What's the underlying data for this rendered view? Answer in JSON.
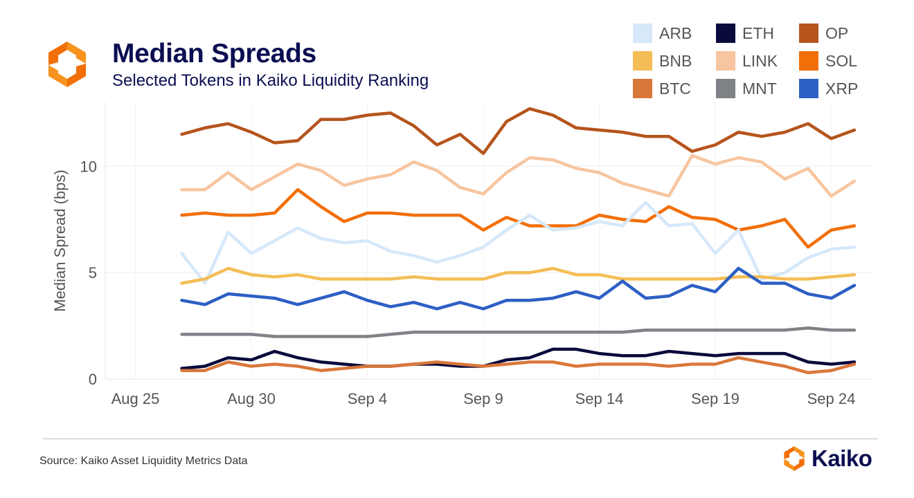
{
  "header": {
    "title": "Median Spreads",
    "subtitle": "Selected Tokens in Kaiko Liquidity Ranking"
  },
  "footer": {
    "source": "Source: Kaiko Asset Liquidity Metrics Data",
    "brand": "Kaiko"
  },
  "colors": {
    "brand_navy": "#0b0e52",
    "brand_orange": "#f7931e",
    "brand_orange_dark": "#e8590c"
  },
  "icons": {
    "logo": "kaiko-logo-icon"
  },
  "chart_data": {
    "type": "line",
    "title": "Median Spreads",
    "subtitle": "Selected Tokens in Kaiko Liquidity Ranking",
    "xlabel": "",
    "ylabel": "Median Spread (bps)",
    "ylim": [
      0,
      13
    ],
    "yticks": [
      0,
      5,
      10
    ],
    "xticks": [
      "Aug 25",
      "Aug 30",
      "Sep 4",
      "Sep 9",
      "Sep 14",
      "Sep 19",
      "Sep 24"
    ],
    "x": [
      "Aug 27",
      "Aug 28",
      "Aug 29",
      "Aug 30",
      "Aug 31",
      "Sep 1",
      "Sep 2",
      "Sep 3",
      "Sep 4",
      "Sep 5",
      "Sep 6",
      "Sep 7",
      "Sep 8",
      "Sep 9",
      "Sep 10",
      "Sep 11",
      "Sep 12",
      "Sep 13",
      "Sep 14",
      "Sep 15",
      "Sep 16",
      "Sep 17",
      "Sep 18",
      "Sep 19",
      "Sep 20",
      "Sep 21",
      "Sep 22",
      "Sep 23",
      "Sep 24",
      "Sep 25"
    ],
    "grid": true,
    "legend": "top-right",
    "series": [
      {
        "name": "OP",
        "color": "#b5541c",
        "values": [
          11.5,
          11.8,
          12.0,
          11.6,
          11.1,
          11.2,
          12.2,
          12.2,
          12.4,
          12.5,
          11.9,
          11.0,
          11.5,
          10.6,
          12.1,
          12.7,
          12.4,
          11.8,
          11.7,
          11.6,
          11.4,
          11.4,
          10.7,
          11.0,
          11.6,
          11.4,
          11.6,
          12.0,
          11.3,
          11.7
        ]
      },
      {
        "name": "LINK",
        "color": "#f7c59f",
        "values": [
          8.9,
          8.9,
          9.7,
          8.9,
          9.5,
          10.1,
          9.8,
          9.1,
          9.4,
          9.6,
          10.2,
          9.8,
          9.0,
          8.7,
          9.7,
          10.4,
          10.3,
          9.9,
          9.7,
          9.2,
          8.9,
          8.6,
          10.5,
          10.1,
          10.4,
          10.2,
          9.4,
          9.9,
          8.6,
          9.3
        ]
      },
      {
        "name": "SOL",
        "color": "#f26f08",
        "values": [
          7.7,
          7.8,
          7.7,
          7.7,
          7.8,
          8.9,
          8.1,
          7.4,
          7.8,
          7.8,
          7.7,
          7.7,
          7.7,
          7.0,
          7.6,
          7.2,
          7.2,
          7.2,
          7.7,
          7.5,
          7.4,
          8.1,
          7.6,
          7.5,
          7.0,
          7.2,
          7.5,
          6.2,
          7.0,
          7.2
        ]
      },
      {
        "name": "ARB",
        "color": "#d6e8fa",
        "values": [
          5.9,
          4.5,
          6.9,
          5.9,
          6.5,
          7.1,
          6.6,
          6.4,
          6.5,
          6.0,
          5.8,
          5.5,
          5.8,
          6.2,
          7.0,
          7.7,
          7.0,
          7.1,
          7.4,
          7.2,
          8.3,
          7.2,
          7.3,
          5.9,
          7.0,
          4.7,
          5.0,
          5.7,
          6.1,
          6.2
        ]
      },
      {
        "name": "BNB",
        "color": "#f4bd55",
        "values": [
          4.5,
          4.7,
          5.2,
          4.9,
          4.8,
          4.9,
          4.7,
          4.7,
          4.7,
          4.7,
          4.8,
          4.7,
          4.7,
          4.7,
          5.0,
          5.0,
          5.2,
          4.9,
          4.9,
          4.7,
          4.7,
          4.7,
          4.7,
          4.7,
          4.8,
          4.8,
          4.7,
          4.7,
          4.8,
          4.9
        ]
      },
      {
        "name": "XRP",
        "color": "#2d5fc4",
        "values": [
          3.7,
          3.5,
          4.0,
          3.9,
          3.8,
          3.5,
          3.8,
          4.1,
          3.7,
          3.4,
          3.6,
          3.3,
          3.6,
          3.3,
          3.7,
          3.7,
          3.8,
          4.1,
          3.8,
          4.6,
          3.8,
          3.9,
          4.4,
          4.1,
          5.2,
          4.5,
          4.5,
          4.0,
          3.8,
          4.4
        ]
      },
      {
        "name": "MNT",
        "color": "#7f8287",
        "values": [
          2.1,
          2.1,
          2.1,
          2.1,
          2.0,
          2.0,
          2.0,
          2.0,
          2.0,
          2.1,
          2.2,
          2.2,
          2.2,
          2.2,
          2.2,
          2.2,
          2.2,
          2.2,
          2.2,
          2.2,
          2.3,
          2.3,
          2.3,
          2.3,
          2.3,
          2.3,
          2.3,
          2.4,
          2.3,
          2.3
        ]
      },
      {
        "name": "ETH",
        "color": "#0a0a3c",
        "values": [
          0.5,
          0.6,
          1.0,
          0.9,
          1.3,
          1.0,
          0.8,
          0.7,
          0.6,
          0.6,
          0.7,
          0.7,
          0.6,
          0.6,
          0.9,
          1.0,
          1.4,
          1.4,
          1.2,
          1.1,
          1.1,
          1.3,
          1.2,
          1.1,
          1.2,
          1.2,
          1.2,
          0.8,
          0.7,
          0.8
        ]
      },
      {
        "name": "BTC",
        "color": "#d9773a",
        "values": [
          0.4,
          0.4,
          0.8,
          0.6,
          0.7,
          0.6,
          0.4,
          0.5,
          0.6,
          0.6,
          0.7,
          0.8,
          0.7,
          0.6,
          0.7,
          0.8,
          0.8,
          0.6,
          0.7,
          0.7,
          0.7,
          0.6,
          0.7,
          0.7,
          1.0,
          0.8,
          0.6,
          0.3,
          0.4,
          0.7
        ]
      }
    ],
    "legend_order": [
      "ARB",
      "ETH",
      "OP",
      "BNB",
      "LINK",
      "SOL",
      "BTC",
      "MNT",
      "XRP"
    ]
  }
}
